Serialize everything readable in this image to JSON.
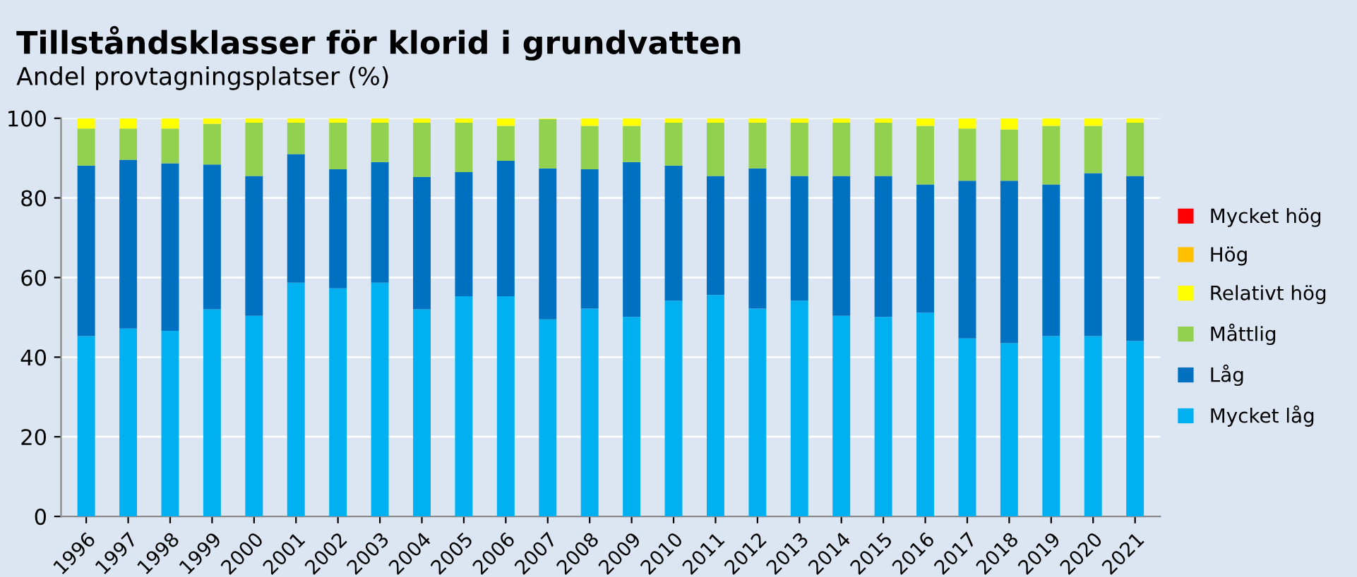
{
  "chart_data": {
    "type": "bar",
    "title": "Tillståndsklasser för klorid i grundvatten",
    "subtitle": "Andel provtagningsplatser (%)",
    "categories": [
      "1996",
      "1997",
      "1998",
      "1999",
      "2000",
      "2001",
      "2002",
      "2003",
      "2004",
      "2005",
      "2006",
      "2007",
      "2008",
      "2009",
      "2010",
      "2011",
      "2012",
      "2013",
      "2014",
      "2015",
      "2016",
      "2017",
      "2018",
      "2019",
      "2020",
      "2021"
    ],
    "stacked": true,
    "ylim": [
      0,
      100
    ],
    "yticks": [
      0,
      20,
      40,
      60,
      80,
      100
    ],
    "grid": "y",
    "legend": "right",
    "series": [
      {
        "name": "Mycket låg",
        "color": "#00b0f0",
        "values": [
          45.3,
          47.2,
          46.6,
          52.0,
          50.4,
          58.7,
          57.3,
          58.7,
          52.0,
          55.3,
          55.3,
          49.5,
          52.2,
          50.1,
          54.2,
          55.6,
          52.2,
          54.2,
          50.4,
          50.1,
          51.2,
          44.7,
          43.5,
          45.3,
          45.3,
          44.1
        ]
      },
      {
        "name": "Låg",
        "color": "#0070c0",
        "values": [
          42.8,
          42.4,
          42.1,
          36.4,
          35.1,
          32.3,
          29.9,
          30.3,
          33.3,
          31.2,
          34.0,
          37.9,
          35.0,
          38.9,
          33.9,
          29.9,
          35.2,
          31.3,
          35.1,
          35.4,
          32.2,
          39.6,
          40.8,
          38.1,
          40.9,
          41.4
        ]
      },
      {
        "name": "Måttlig",
        "color": "#92d050",
        "values": [
          9.3,
          7.8,
          8.7,
          10.2,
          13.4,
          7.9,
          11.7,
          9.9,
          13.6,
          12.4,
          8.8,
          12.4,
          10.9,
          9.1,
          10.8,
          13.4,
          11.5,
          13.4,
          13.4,
          13.4,
          14.7,
          13.1,
          12.9,
          14.7,
          11.9,
          13.4
        ]
      },
      {
        "name": "Relativt hög",
        "color": "#ffff00",
        "values": [
          2.6,
          2.6,
          2.6,
          1.4,
          1.1,
          1.1,
          1.1,
          1.1,
          1.1,
          1.1,
          1.9,
          0.2,
          1.9,
          1.9,
          1.1,
          1.1,
          1.1,
          1.1,
          1.1,
          1.1,
          1.9,
          2.6,
          2.8,
          1.9,
          1.9,
          1.1
        ]
      },
      {
        "name": "Hög",
        "color": "#ffc000",
        "values": [
          0,
          0,
          0,
          0,
          0,
          0,
          0,
          0,
          0,
          0,
          0,
          0,
          0,
          0,
          0,
          0,
          0,
          0,
          0,
          0,
          0,
          0,
          0,
          0,
          0,
          0
        ]
      },
      {
        "name": "Mycket hög",
        "color": "#ff0000",
        "values": [
          0,
          0,
          0,
          0,
          0,
          0,
          0,
          0,
          0,
          0,
          0,
          0,
          0,
          0,
          0,
          0,
          0,
          0,
          0,
          0,
          0,
          0,
          0,
          0,
          0,
          0
        ]
      }
    ]
  }
}
